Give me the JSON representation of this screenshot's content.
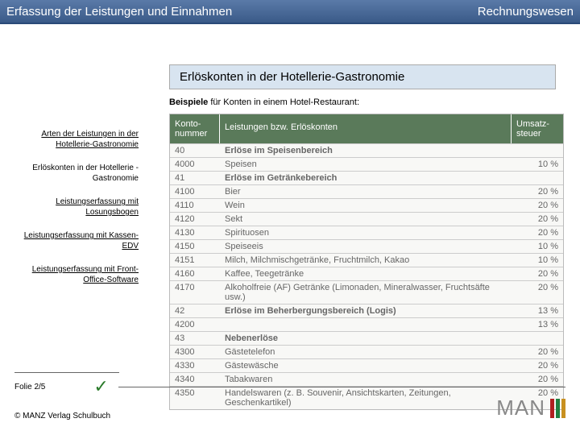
{
  "header": {
    "left": "Erfassung der Leistungen und Einnahmen",
    "right": "Rechnungswesen"
  },
  "title": "Erlöskonten in der Hotellerie-Gastronomie",
  "subtitle_bold": "Beispiele",
  "subtitle_rest": " für Konten in einem Hotel-Restaurant:",
  "sidebar": {
    "items": [
      "Arten der Leistungen in der Hotellerie-Gastronomie",
      "Erlöskonten in der Hotellerie -Gastronomie",
      "Leistungserfassung mit Losungsbogen",
      "Leistungserfassung mit Kassen- EDV",
      "Leistungserfassung mit Front- Office-Software"
    ]
  },
  "table": {
    "headers": {
      "c1": "Konto-nummer",
      "c2": "Leistungen bzw. Erlöskonten",
      "c3": "Umsatz-steuer"
    },
    "rows": [
      {
        "n": "40",
        "t": "Erlöse im Speisenbereich",
        "p": "",
        "section": true
      },
      {
        "n": "4000",
        "t": "Speisen",
        "p": "10 %"
      },
      {
        "n": "41",
        "t": "Erlöse im Getränkebereich",
        "p": "",
        "section": true
      },
      {
        "n": "4100",
        "t": "Bier",
        "p": "20 %"
      },
      {
        "n": "4110",
        "t": "Wein",
        "p": "20 %"
      },
      {
        "n": "4120",
        "t": "Sekt",
        "p": "20 %"
      },
      {
        "n": "4130",
        "t": "Spirituosen",
        "p": "20 %"
      },
      {
        "n": "4150",
        "t": "Speiseeis",
        "p": "10 %"
      },
      {
        "n": "4151",
        "t": "Milch, Milchmischgetränke, Fruchtmilch, Kakao",
        "p": "10 %"
      },
      {
        "n": "4160",
        "t": "Kaffee, Teegetränke",
        "p": "20 %"
      },
      {
        "n": "4170",
        "t": "Alkoholfreie (AF) Getränke (Limonaden, Mineralwasser, Fruchtsäfte usw.)",
        "p": "20 %"
      },
      {
        "n": "42",
        "t": "Erlöse im Beherbergungsbereich (Logis)",
        "p": "13 %",
        "section": true
      },
      {
        "n": "4200",
        "t": "",
        "p": "13 %"
      },
      {
        "n": "43",
        "t": "Nebenerlöse",
        "p": "",
        "section": true
      },
      {
        "n": "4300",
        "t": "Gästetelefon",
        "p": "20 %"
      },
      {
        "n": "4330",
        "t": "Gästewäsche",
        "p": "20 %"
      },
      {
        "n": "4340",
        "t": "Tabakwaren",
        "p": "20 %"
      },
      {
        "n": "4350",
        "t": "Handelswaren (z. B. Souvenir, Ansichtskarten, Zeitungen, Geschenkartikel)",
        "p": "20 %"
      }
    ]
  },
  "footer": {
    "slide": "Folie 2/5",
    "copyright": "© MANZ Verlag Schulbuch"
  },
  "logo": {
    "text": "MAN",
    "bar_colors": [
      "#b02020",
      "#208040",
      "#c89020"
    ]
  }
}
